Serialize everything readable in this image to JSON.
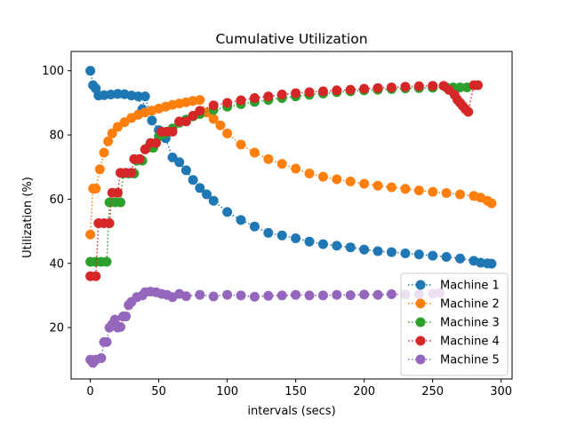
{
  "chart_data": {
    "type": "line",
    "title": "Cumulative Utilization",
    "xlabel": "intervals (secs)",
    "ylabel": "Utilization (%)",
    "xlim": [
      -14,
      308
    ],
    "ylim": [
      4,
      106
    ],
    "xticks": [
      0,
      50,
      100,
      150,
      200,
      250,
      300
    ],
    "yticks": [
      20,
      40,
      60,
      80,
      100
    ],
    "grid": false,
    "legend_position": "lower-right",
    "line_style": "dotted",
    "marker": "circle",
    "series": [
      {
        "name": "Machine 1",
        "color": "#1f77b4",
        "x": [
          0,
          2,
          4,
          6,
          10,
          15,
          20,
          25,
          30,
          35,
          38,
          40,
          45,
          50,
          55,
          60,
          65,
          70,
          75,
          80,
          85,
          90,
          100,
          110,
          120,
          130,
          140,
          150,
          160,
          170,
          180,
          190,
          200,
          210,
          220,
          230,
          240,
          250,
          260,
          270,
          280,
          285,
          290,
          293
        ],
        "y": [
          100,
          95.5,
          94.5,
          92.3,
          92.4,
          92.6,
          92.8,
          92.7,
          92.3,
          92,
          88,
          92,
          84.5,
          81.5,
          79,
          73,
          71.5,
          69,
          66,
          63.5,
          61.5,
          59.5,
          56,
          53.5,
          51.5,
          49.5,
          48.7,
          47.8,
          46.8,
          46,
          45.5,
          45,
          44.3,
          43.8,
          43.5,
          43.1,
          42.8,
          42.4,
          42,
          41.5,
          40.8,
          40.2,
          40,
          39.9
        ]
      },
      {
        "name": "Machine 2",
        "color": "#ff7f0e",
        "x": [
          0,
          2,
          4,
          7,
          10,
          13,
          16,
          20,
          25,
          30,
          35,
          40,
          45,
          50,
          55,
          60,
          65,
          70,
          75,
          80,
          85,
          90,
          95,
          100,
          110,
          120,
          130,
          140,
          150,
          160,
          170,
          180,
          190,
          200,
          210,
          220,
          230,
          240,
          250,
          260,
          270,
          280,
          285,
          290,
          293
        ],
        "y": [
          49,
          63.3,
          63.3,
          69.3,
          74.5,
          78,
          80.5,
          82.5,
          84,
          85.3,
          86.3,
          87,
          87.6,
          88.2,
          88.8,
          89.4,
          89.8,
          90.2,
          90.6,
          90.9,
          87,
          85,
          83,
          80.5,
          77,
          74.5,
          72.5,
          71,
          69.5,
          68,
          67,
          66.2,
          65.5,
          64.8,
          64.2,
          63.7,
          63.2,
          62.7,
          62.3,
          61.9,
          61.5,
          61,
          60.5,
          59.5,
          58.7
        ]
      },
      {
        "name": "Machine 3",
        "color": "#2ca02c",
        "x": [
          0,
          4,
          8,
          12,
          14,
          18,
          22,
          24,
          28,
          32,
          34,
          38,
          42,
          46,
          50,
          55,
          60,
          65,
          70,
          75,
          80,
          90,
          100,
          110,
          120,
          130,
          140,
          150,
          160,
          170,
          180,
          190,
          200,
          210,
          220,
          230,
          240,
          250,
          260,
          265,
          270,
          275
        ],
        "y": [
          40.5,
          40.5,
          40.5,
          40.5,
          59,
          59,
          59,
          68,
          68,
          68,
          72,
          72,
          76,
          76,
          79.5,
          80.5,
          82,
          83.8,
          84.8,
          85.8,
          86.5,
          87.8,
          88.8,
          89.6,
          90.3,
          90.9,
          91.5,
          92,
          92.5,
          92.9,
          93.3,
          93.6,
          93.9,
          94.1,
          94.3,
          94.5,
          94.6,
          94.7,
          94.8,
          94.8,
          94.8,
          94.8
        ]
      },
      {
        "name": "Machine 4",
        "color": "#d62728",
        "x": [
          0,
          4,
          6,
          10,
          14,
          16,
          20,
          22,
          26,
          30,
          32,
          36,
          40,
          44,
          48,
          52,
          56,
          60,
          65,
          70,
          75,
          80,
          90,
          100,
          110,
          120,
          130,
          140,
          150,
          160,
          170,
          180,
          190,
          200,
          210,
          220,
          230,
          240,
          250,
          258,
          262,
          266,
          268,
          270,
          272,
          274,
          276,
          280,
          283
        ],
        "y": [
          36,
          36,
          52.5,
          52.5,
          52.5,
          62,
          62,
          68.2,
          68.2,
          68.2,
          72.5,
          72.5,
          75.5,
          77.5,
          77.5,
          81,
          81,
          81,
          84.2,
          84.2,
          86,
          87.5,
          89.2,
          90,
          90.8,
          91.5,
          92,
          92.6,
          93,
          93.3,
          93.6,
          93.9,
          94.1,
          94.4,
          94.6,
          94.8,
          95,
          95.2,
          95.3,
          95.3,
          94,
          92.5,
          91,
          90,
          89,
          88,
          87.2,
          95.5,
          95.5
        ]
      },
      {
        "name": "Machine 5",
        "color": "#9467bd",
        "x": [
          0,
          2,
          4,
          8,
          10,
          12,
          14,
          16,
          18,
          20,
          22,
          24,
          26,
          28,
          30,
          34,
          38,
          40,
          44,
          48,
          52,
          56,
          60,
          65,
          70,
          80,
          90,
          100,
          110,
          120,
          130,
          140,
          150,
          160,
          170,
          180,
          190,
          200,
          210,
          220,
          230,
          240,
          250,
          255
        ],
        "y": [
          10,
          9,
          10,
          10.5,
          15.5,
          15.5,
          20,
          21,
          22.5,
          20,
          20.2,
          23.5,
          23.5,
          27,
          28,
          29.5,
          30,
          31,
          31.2,
          31,
          30.5,
          30.2,
          29.5,
          30.5,
          29.8,
          30.2,
          29.7,
          30.2,
          30,
          29.6,
          29.9,
          30,
          30.2,
          30,
          30,
          30.2,
          30.1,
          30.3,
          30.2,
          30.4,
          30.3,
          30.4,
          30.6,
          30.8
        ]
      }
    ]
  }
}
